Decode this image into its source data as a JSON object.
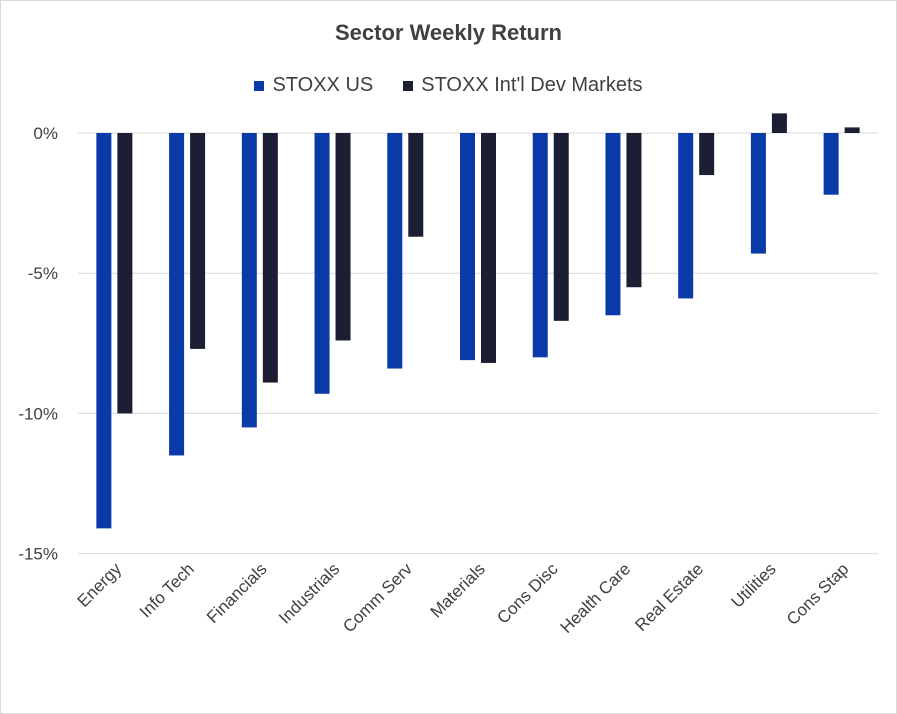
{
  "chart_data": {
    "type": "bar",
    "title": "Sector Weekly Return",
    "categories": [
      "Energy",
      "Info Tech",
      "Financials",
      "Industrials",
      "Comm Serv",
      "Materials",
      "Cons Disc",
      "Health Care",
      "Real Estate",
      "Utilities",
      "Cons Stap"
    ],
    "series": [
      {
        "name": "STOXX US",
        "color": "#0a3aa8",
        "values": [
          -14.1,
          -11.5,
          -10.5,
          -9.3,
          -8.4,
          -8.1,
          -8.0,
          -6.5,
          -5.9,
          -4.3,
          -2.2
        ]
      },
      {
        "name": "STOXX Int'l Dev Markets",
        "color": "#1c1f33",
        "values": [
          -10.0,
          -7.7,
          -8.9,
          -7.4,
          -3.7,
          -8.2,
          -6.7,
          -5.5,
          -1.5,
          0.7,
          0.2
        ]
      }
    ],
    "yticks": [
      0,
      -5,
      -10,
      -15
    ],
    "ytick_labels": [
      "0%",
      "-5%",
      "-10%",
      "-15%"
    ],
    "ylim": [
      -15,
      0.7
    ],
    "xlabel": "",
    "ylabel": "",
    "grid": true,
    "legend_position": "top"
  }
}
